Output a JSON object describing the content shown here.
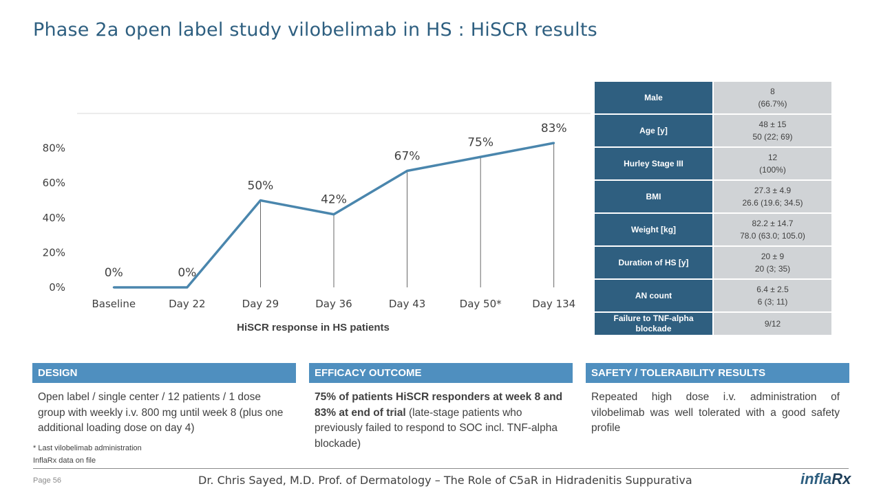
{
  "title": "Phase 2a open label study vilobelimab in HS : HiSCR results",
  "chart_data": {
    "type": "line",
    "categories": [
      "Baseline",
      "Day 22",
      "Day 29",
      "Day 36",
      "Day 43",
      "Day 50*",
      "Day 134"
    ],
    "values": [
      0,
      0,
      50,
      42,
      67,
      75,
      83
    ],
    "data_labels": [
      "0%",
      "0%",
      "50%",
      "42%",
      "67%",
      "75%",
      "83%"
    ],
    "y_ticks": [
      0,
      20,
      40,
      60,
      80
    ],
    "y_tick_labels": [
      "0%",
      "20%",
      "40%",
      "60%",
      "80%"
    ],
    "ylim": [
      0,
      100
    ],
    "xlabel": "HiSCR response in HS patients",
    "ylabel": "",
    "series_color": "#4a86ad"
  },
  "baseline_table": [
    {
      "label": "Male",
      "value_line1": "8",
      "value_line2": "(66.7%)"
    },
    {
      "label": "Age [y]",
      "value_line1": "48 ± 15",
      "value_line2": "50 (22; 69)"
    },
    {
      "label": "Hurley Stage III",
      "value_line1": "12",
      "value_line2": "(100%)"
    },
    {
      "label": "BMI",
      "value_line1": "27.3 ± 4.9",
      "value_line2": "26.6 (19.6; 34.5)"
    },
    {
      "label": "Weight [kg]",
      "value_line1": "82.2 ± 14.7",
      "value_line2": "78.0 (63.0; 105.0)"
    },
    {
      "label": "Duration of HS [y]",
      "value_line1": "20 ± 9",
      "value_line2": "20 (3; 35)"
    },
    {
      "label": "AN count",
      "value_line1": "6.4 ± 2.5",
      "value_line2": "6 (3; 11)"
    },
    {
      "label": "Failure to TNF-alpha blockade",
      "value_line1": "9/12",
      "value_line2": ""
    }
  ],
  "design": {
    "header": "DESIGN",
    "text": "Open label / single center / 12 patients / 1 dose group with weekly i.v. 800 mg until week 8 (plus one additional loading dose on day 4)"
  },
  "efficacy": {
    "header": "EFFICACY OUTCOME",
    "bold_text": "75% of patients HiSCR responders at week 8 and 83% at end of trial",
    "text": " (late-stage patients who previously failed to respond to SOC incl. TNF-alpha blockade)"
  },
  "safety": {
    "header": "SAFETY / TOLERABILITY RESULTS",
    "text": "Repeated high dose i.v. administration of vilobelimab was well tolerated with a good safety profile"
  },
  "footnotes": {
    "note1": "* Last vilobelimab administration",
    "note2": "InflaRx data on file"
  },
  "footer": {
    "page": "Page 56",
    "presenter": "Dr. Chris Sayed, M.D. Prof. of Dermatology – The Role of C5aR in Hidradenitis Suppurativa",
    "logo_main": "infla",
    "logo_rx": "Rx"
  }
}
